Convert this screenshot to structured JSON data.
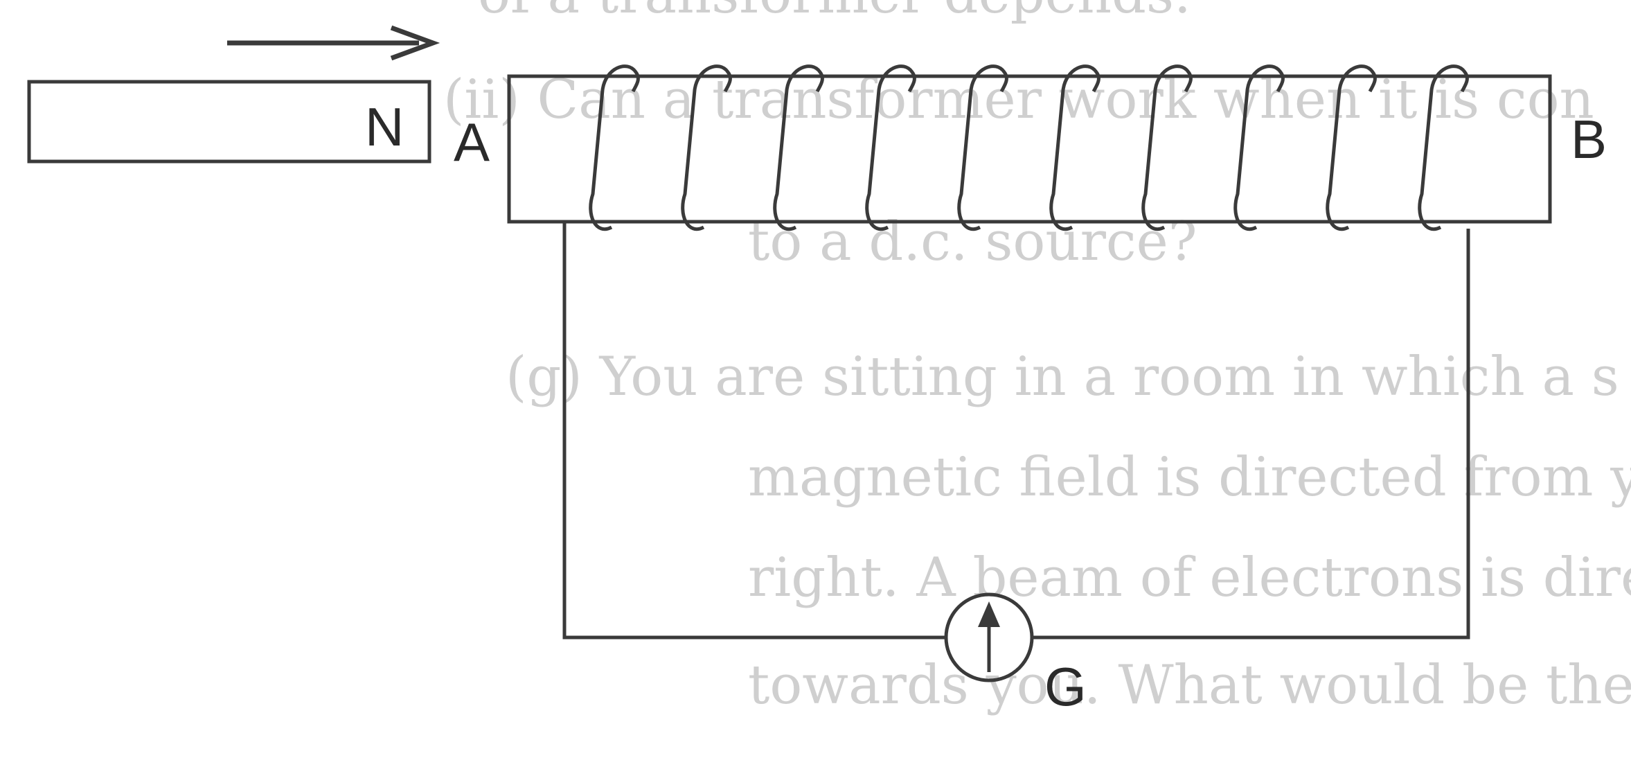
{
  "background_text": [
    "of a transformer depends.",
    "(ii) Can a transformer work when it is con",
    "to a d.c. source?",
    "(g) You are sitting in a room in which a s",
    "magnetic field is directed from your left to",
    "right. A beam of electrons is directed from",
    "towards you. What would be the directi"
  ],
  "labels": {
    "magnet_pole": "N",
    "coil_end_a": "A",
    "coil_end_b": "B",
    "galvanometer": "G"
  },
  "colors": {
    "ink": "#3a3a3a",
    "faded_text": "#cfcfcf"
  },
  "coil": {
    "turns": 10
  },
  "motion_direction": "right"
}
